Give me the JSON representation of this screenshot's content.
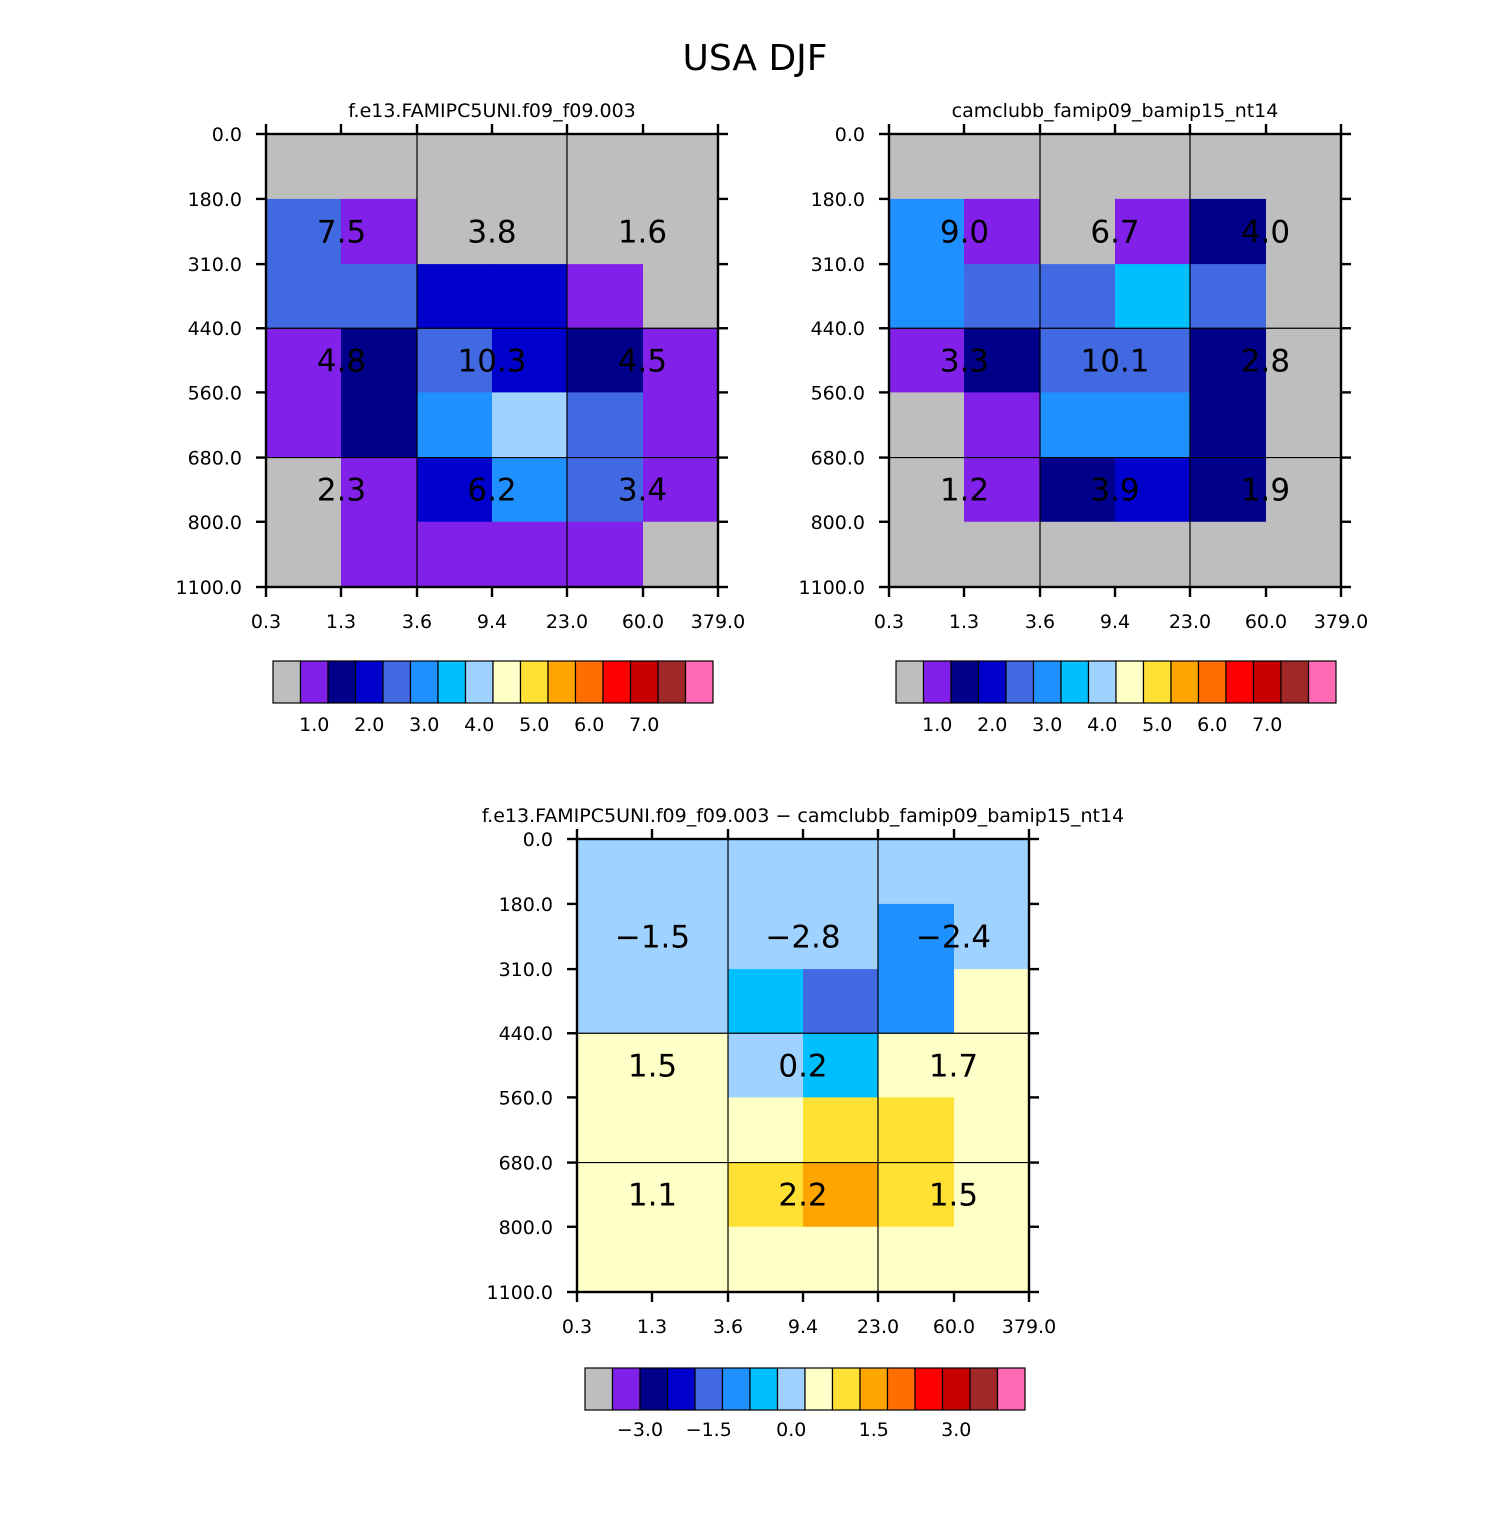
{
  "title": "USA DJF",
  "chart_data": [
    {
      "id": "p1",
      "type": "heatmap",
      "title": "f.e13.FAMIPC5UNI.f09_f09.003",
      "x_ticks": [
        "0.3",
        "1.3",
        "3.6",
        "9.4",
        "23.0",
        "60.0",
        "379.0"
      ],
      "y_ticks": [
        "0.0",
        "180.0",
        "310.0",
        "440.0",
        "560.0",
        "680.0",
        "800.0",
        "1100.0"
      ],
      "cell_colors": [
        [
          0,
          0,
          0,
          0,
          0,
          0
        ],
        [
          4,
          1,
          0,
          0,
          0,
          0
        ],
        [
          4,
          4,
          3,
          3,
          1,
          0
        ],
        [
          1,
          2,
          4,
          3,
          2,
          1
        ],
        [
          1,
          2,
          5,
          7,
          4,
          1
        ],
        [
          0,
          1,
          3,
          5,
          4,
          1
        ],
        [
          0,
          1,
          1,
          1,
          1,
          0
        ]
      ],
      "labels": [
        [
          "7.5",
          "3.8",
          "1.6"
        ],
        [
          "4.8",
          "10.3",
          "4.5"
        ],
        [
          "2.3",
          "6.2",
          "3.4"
        ]
      ],
      "colorbar_labels": [
        "1.0",
        "2.0",
        "3.0",
        "4.0",
        "5.0",
        "6.0",
        "7.0"
      ]
    },
    {
      "id": "p2",
      "type": "heatmap",
      "title": "camclubb_famip09_bamip15_nt14",
      "x_ticks": [
        "0.3",
        "1.3",
        "3.6",
        "9.4",
        "23.0",
        "60.0",
        "379.0"
      ],
      "y_ticks": [
        "0.0",
        "180.0",
        "310.0",
        "440.0",
        "560.0",
        "680.0",
        "800.0",
        "1100.0"
      ],
      "cell_colors": [
        [
          0,
          0,
          0,
          0,
          0,
          0
        ],
        [
          5,
          1,
          0,
          1,
          2,
          0
        ],
        [
          5,
          4,
          4,
          6,
          4,
          0
        ],
        [
          1,
          2,
          4,
          4,
          2,
          0
        ],
        [
          0,
          1,
          5,
          5,
          2,
          0
        ],
        [
          0,
          1,
          2,
          3,
          2,
          0
        ],
        [
          0,
          0,
          0,
          0,
          0,
          0
        ]
      ],
      "labels": [
        [
          "9.0",
          "6.7",
          "4.0"
        ],
        [
          "3.3",
          "10.1",
          "2.8"
        ],
        [
          "1.2",
          "3.9",
          "1.9"
        ]
      ],
      "colorbar_labels": [
        "1.0",
        "2.0",
        "3.0",
        "4.0",
        "5.0",
        "6.0",
        "7.0"
      ]
    },
    {
      "id": "p3",
      "type": "heatmap",
      "title": "f.e13.FAMIPC5UNI.f09_f09.003 − camclubb_famip09_bamip15_nt14",
      "x_ticks": [
        "0.3",
        "1.3",
        "3.6",
        "9.4",
        "23.0",
        "60.0",
        "379.0"
      ],
      "y_ticks": [
        "0.0",
        "180.0",
        "310.0",
        "440.0",
        "560.0",
        "680.0",
        "800.0",
        "1100.0"
      ],
      "cell_colors": [
        [
          7,
          7,
          7,
          7,
          7,
          7
        ],
        [
          7,
          7,
          7,
          7,
          5,
          7
        ],
        [
          7,
          7,
          6,
          4,
          5,
          8
        ],
        [
          8,
          8,
          7,
          6,
          8,
          8
        ],
        [
          8,
          8,
          8,
          9,
          9,
          8
        ],
        [
          8,
          8,
          9,
          10,
          9,
          8
        ],
        [
          8,
          8,
          8,
          8,
          8,
          8
        ]
      ],
      "labels": [
        [
          "−1.5",
          "−2.8",
          "−2.4"
        ],
        [
          "1.5",
          "0.2",
          "1.7"
        ],
        [
          "1.1",
          "2.2",
          "1.5"
        ]
      ],
      "colorbar_labels": [
        "−3.0",
        "−1.5",
        "0.0",
        "1.5",
        "3.0"
      ]
    }
  ],
  "palette": [
    "#bebebe",
    "#8120e8",
    "#00008b",
    "#0000cd",
    "#4169e1",
    "#1e90ff",
    "#00bfff",
    "#a0d2ff",
    "#ffffc8",
    "#ffe135",
    "#ffa500",
    "#ff6e00",
    "#ff0000",
    "#c80000",
    "#a02828",
    "#ff69b4"
  ]
}
